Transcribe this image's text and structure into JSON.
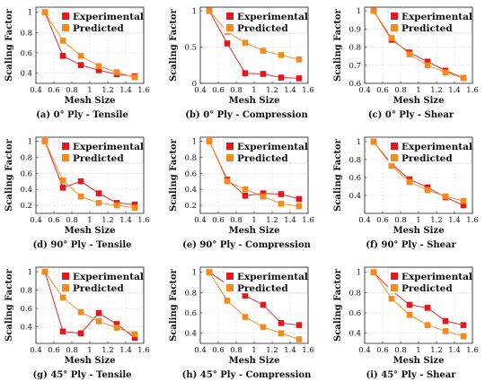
{
  "colors": {
    "experimental": "#e8161b",
    "predicted": "#f48a1c",
    "grid": "#d9d9d9"
  },
  "chart_data": [
    {
      "type": "line",
      "caption_letter": "(a)",
      "caption_text": "0° Ply - Tensile",
      "xlabel": "Mesh Size",
      "ylabel": "Scaling Factor",
      "xlim": [
        0.4,
        1.6
      ],
      "ylim": [
        0.3,
        1.05
      ],
      "grid": true,
      "legend": "top-right",
      "xticks": [
        "0.4",
        "0.6",
        "0.8",
        "1",
        "1.2",
        "1.4",
        "1.6"
      ],
      "yticks": [
        0.4,
        0.6,
        0.8,
        1
      ],
      "x": [
        0.5,
        0.7,
        0.9,
        1.1,
        1.3,
        1.5
      ],
      "series": [
        {
          "name": "Experimental",
          "values": [
            1.0,
            0.57,
            0.48,
            0.43,
            0.39,
            0.37
          ]
        },
        {
          "name": "Predicted",
          "values": [
            1.0,
            0.72,
            0.57,
            0.47,
            0.41,
            0.36
          ]
        }
      ]
    },
    {
      "type": "line",
      "caption_letter": "(b)",
      "caption_text": "0° Ply - Compression",
      "xlabel": "Mesh Size",
      "ylabel": "Scaling Factor",
      "xlim": [
        0.4,
        1.6
      ],
      "ylim": [
        0,
        1.05
      ],
      "grid": true,
      "legend": "top-right",
      "xticks": [
        "0.4",
        "0.6",
        "0.8",
        "1",
        "1.2",
        "1.4",
        "1.6"
      ],
      "yticks": [
        0,
        0.5,
        1
      ],
      "x": [
        0.5,
        0.7,
        0.9,
        1.1,
        1.3,
        1.5
      ],
      "series": [
        {
          "name": "Experimental",
          "values": [
            1.0,
            0.55,
            0.14,
            0.13,
            0.08,
            0.07
          ]
        },
        {
          "name": "Predicted",
          "values": [
            1.0,
            0.71,
            0.56,
            0.45,
            0.39,
            0.33
          ]
        }
      ]
    },
    {
      "type": "line",
      "caption_letter": "(c)",
      "caption_text": "0° Ply - Shear",
      "xlabel": "Mesh Size",
      "ylabel": "Scaling Factor",
      "xlim": [
        0.4,
        1.6
      ],
      "ylim": [
        0.6,
        1.02
      ],
      "grid": true,
      "legend": "top-right",
      "xticks": [
        "0.4",
        "0.6",
        "0.8",
        "1",
        "1.2",
        "1.4",
        "1.6"
      ],
      "yticks": [
        0.6,
        0.7,
        0.8,
        0.9,
        1
      ],
      "x": [
        0.5,
        0.7,
        0.9,
        1.1,
        1.3,
        1.5
      ],
      "series": [
        {
          "name": "Experimental",
          "values": [
            1.0,
            0.84,
            0.77,
            0.72,
            0.67,
            0.63
          ]
        },
        {
          "name": "Predicted",
          "values": [
            1.0,
            0.85,
            0.76,
            0.7,
            0.66,
            0.63
          ]
        }
      ]
    },
    {
      "type": "line",
      "caption_letter": "(d)",
      "caption_text": "90° Ply - Tensile",
      "xlabel": "Mesh Size",
      "ylabel": "Scaling Factor",
      "xlim": [
        0.4,
        1.6
      ],
      "ylim": [
        0.1,
        1.05
      ],
      "grid": true,
      "legend": "top-right",
      "xticks": [
        "0.4",
        "0.6",
        "0.8",
        "1",
        "1.2",
        "1.4",
        "1.6"
      ],
      "yticks": [
        0.2,
        0.4,
        0.6,
        0.8,
        1
      ],
      "x": [
        0.5,
        0.7,
        0.9,
        1.1,
        1.3,
        1.5
      ],
      "series": [
        {
          "name": "Experimental",
          "values": [
            1.0,
            0.42,
            0.5,
            0.35,
            0.23,
            0.21
          ]
        },
        {
          "name": "Predicted",
          "values": [
            1.0,
            0.51,
            0.31,
            0.23,
            0.2,
            0.17
          ]
        }
      ]
    },
    {
      "type": "line",
      "caption_letter": "(e)",
      "caption_text": "90° Ply - Compression",
      "xlabel": "Mesh Size",
      "ylabel": "Scaling Factor",
      "xlim": [
        0.4,
        1.6
      ],
      "ylim": [
        0.1,
        1.05
      ],
      "grid": true,
      "legend": "top-right",
      "xticks": [
        "0.4",
        "0.6",
        "0.8",
        "1",
        "1.2",
        "1.4",
        "1.6"
      ],
      "yticks": [
        0.2,
        0.4,
        0.6,
        0.8,
        1
      ],
      "x": [
        0.5,
        0.7,
        0.9,
        1.1,
        1.3,
        1.5
      ],
      "series": [
        {
          "name": "Experimental",
          "values": [
            1.0,
            0.52,
            0.32,
            0.35,
            0.34,
            0.28
          ]
        },
        {
          "name": "Predicted",
          "values": [
            1.0,
            0.5,
            0.4,
            0.31,
            0.22,
            0.19
          ]
        }
      ]
    },
    {
      "type": "line",
      "caption_letter": "(f)",
      "caption_text": "90° Ply - Shear",
      "xlabel": "Mesh Size",
      "ylabel": "Scaling Factor",
      "xlim": [
        0.4,
        1.6
      ],
      "ylim": [
        0.2,
        1.05
      ],
      "grid": true,
      "legend": "top-right",
      "xticks": [
        "0.4",
        "0.6",
        "0.8",
        "1",
        "1.2",
        "1.4",
        "1.6"
      ],
      "yticks": [
        0.4,
        0.6,
        0.8,
        1
      ],
      "x": [
        0.5,
        0.7,
        0.9,
        1.1,
        1.3,
        1.5
      ],
      "series": [
        {
          "name": "Experimental",
          "values": [
            1.0,
            0.75,
            0.58,
            0.49,
            0.38,
            0.29
          ]
        },
        {
          "name": "Predicted",
          "values": [
            1.0,
            0.73,
            0.55,
            0.46,
            0.39,
            0.34
          ]
        }
      ]
    },
    {
      "type": "line",
      "caption_letter": "(g)",
      "caption_text": "45° Ply - Tensile",
      "xlabel": "Mesh Size",
      "ylabel": "Scaling Factor",
      "xlim": [
        0.4,
        1.6
      ],
      "ylim": [
        0.22,
        1.05
      ],
      "grid": true,
      "legend": "top-right",
      "xticks": [
        "0.4",
        "0.6",
        "0.8",
        "1",
        "1.2",
        "1.4",
        "1.6"
      ],
      "yticks": [
        0.4,
        0.6,
        0.8,
        1
      ],
      "x": [
        0.5,
        0.7,
        0.9,
        1.1,
        1.3,
        1.5
      ],
      "series": [
        {
          "name": "Experimental",
          "values": [
            1.0,
            0.35,
            0.33,
            0.55,
            0.43,
            0.28
          ]
        },
        {
          "name": "Predicted",
          "values": [
            1.0,
            0.72,
            0.56,
            0.46,
            0.39,
            0.32
          ]
        }
      ]
    },
    {
      "type": "line",
      "caption_letter": "(h)",
      "caption_text": "45° Ply - Compression",
      "xlabel": "Mesh Size",
      "ylabel": "Scaling Factor",
      "xlim": [
        0.4,
        1.6
      ],
      "ylim": [
        0.3,
        1.05
      ],
      "grid": true,
      "legend": "top-right",
      "xticks": [
        "0.4",
        "0.6",
        "0.8",
        "1",
        "1.2",
        "1.4",
        "1.6"
      ],
      "yticks": [
        0.4,
        0.6,
        0.8,
        1
      ],
      "x": [
        0.5,
        0.7,
        0.9,
        1.1,
        1.3,
        1.5
      ],
      "series": [
        {
          "name": "Experimental",
          "values": [
            1.0,
            0.88,
            0.77,
            0.68,
            0.5,
            0.48
          ]
        },
        {
          "name": "Predicted",
          "values": [
            1.0,
            0.72,
            0.56,
            0.46,
            0.4,
            0.34
          ]
        }
      ]
    },
    {
      "type": "line",
      "caption_letter": "(i)",
      "caption_text": "45° Ply - Shear",
      "xlabel": "Mesh Size",
      "ylabel": "Scaling Factor",
      "xlim": [
        0.4,
        1.6
      ],
      "ylim": [
        0.3,
        1.05
      ],
      "grid": true,
      "legend": "top-right",
      "xticks": [
        "0.4",
        "0.6",
        "0.8",
        "1",
        "1.2",
        "1.4",
        "1.6"
      ],
      "yticks": [
        0.4,
        0.6,
        0.8,
        1
      ],
      "x": [
        0.5,
        0.7,
        0.9,
        1.1,
        1.3,
        1.5
      ],
      "series": [
        {
          "name": "Experimental",
          "values": [
            1.0,
            0.82,
            0.68,
            0.65,
            0.52,
            0.48
          ]
        },
        {
          "name": "Predicted",
          "values": [
            1.0,
            0.74,
            0.58,
            0.48,
            0.42,
            0.37
          ]
        }
      ]
    }
  ]
}
